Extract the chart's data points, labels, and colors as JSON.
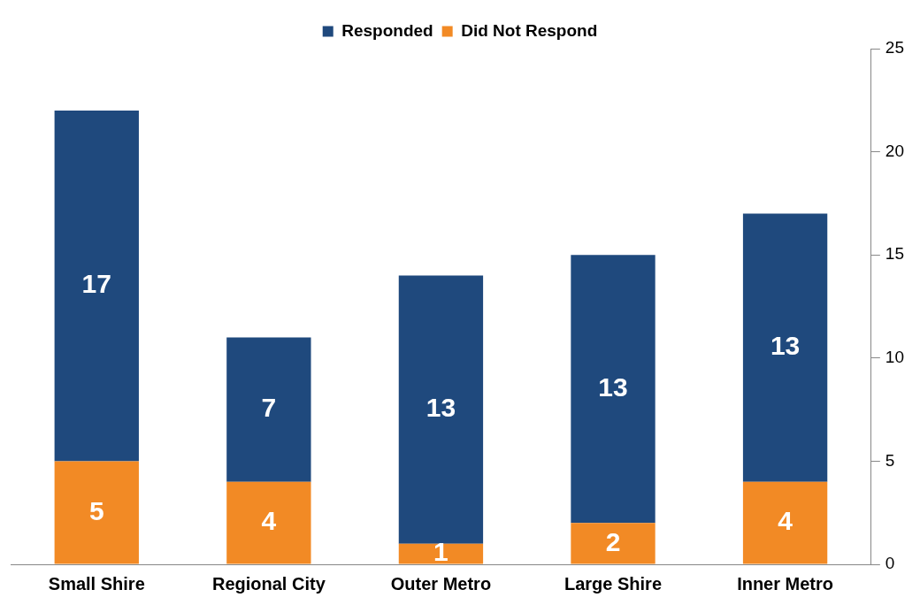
{
  "chart_data": {
    "type": "bar",
    "stacked": true,
    "categories": [
      "Small Shire",
      "Regional City",
      "Outer Metro",
      "Large Shire",
      "Inner Metro"
    ],
    "series": [
      {
        "name": "Did Not Respond",
        "color": "#f28a25",
        "values": [
          5,
          4,
          1,
          2,
          4
        ]
      },
      {
        "name": "Responded",
        "color": "#1f497d",
        "values": [
          17,
          7,
          13,
          13,
          13
        ]
      }
    ],
    "ylim": [
      0,
      25
    ],
    "yticks": [
      0,
      5,
      10,
      15,
      20,
      25
    ],
    "grid": false,
    "legend": "top",
    "data_labels": true
  }
}
